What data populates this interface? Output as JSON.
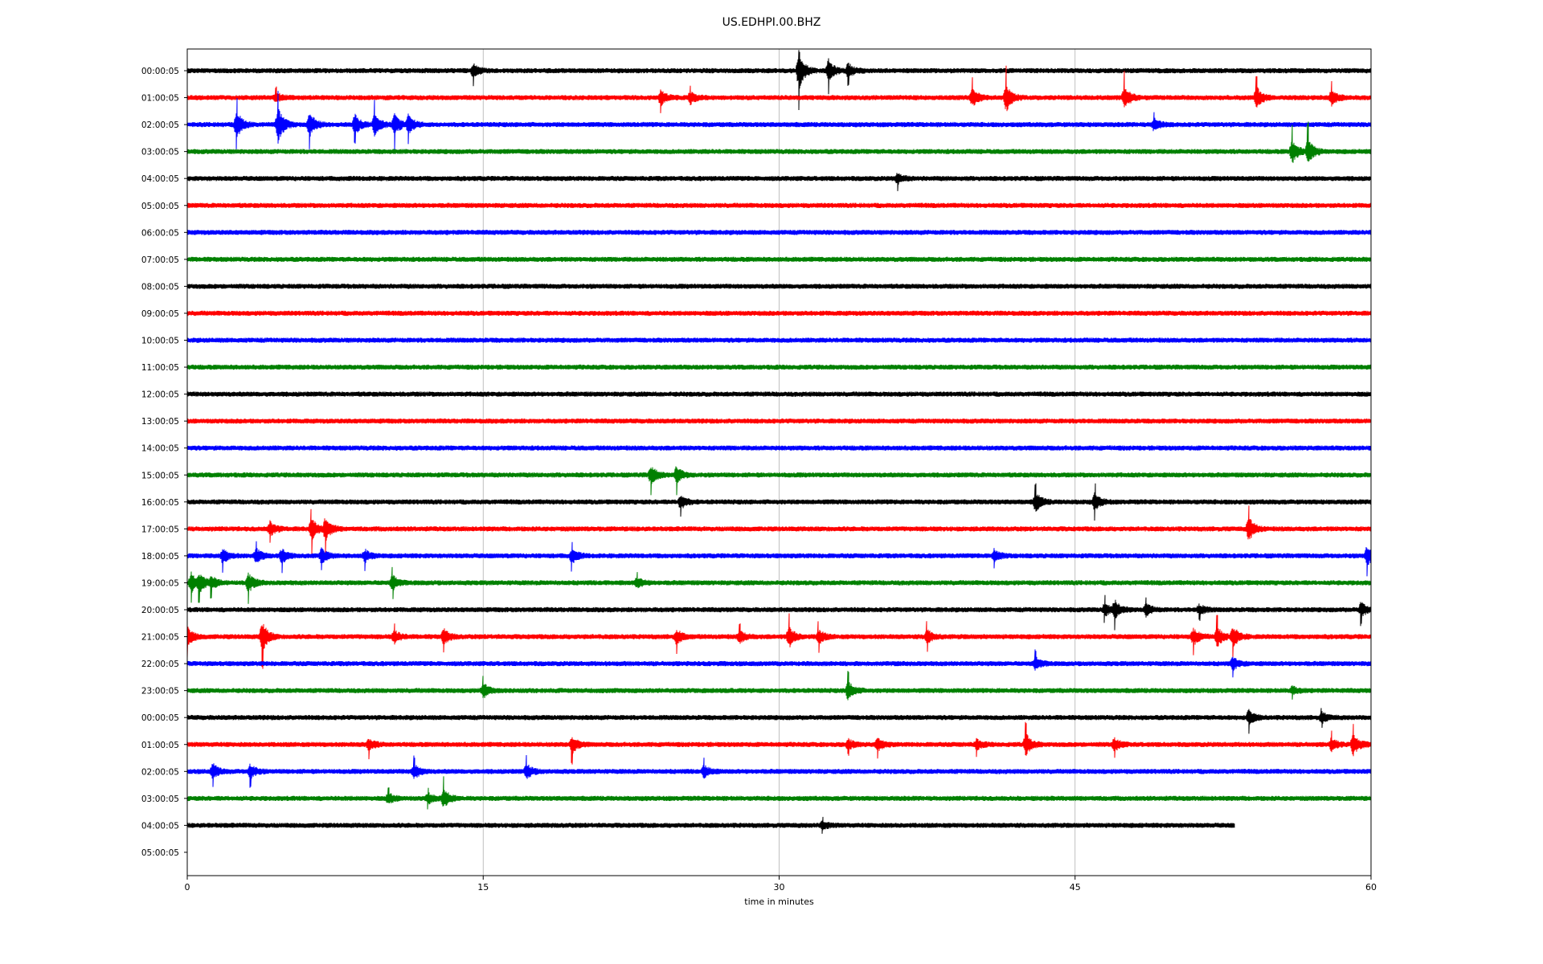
{
  "chart_data": {
    "type": "line",
    "title": "US.EDHPI.00.BHZ",
    "xlabel": "time in minutes",
    "ylabel": "",
    "xlim": [
      0,
      60
    ],
    "xticks": [
      "0",
      "15",
      "30",
      "45",
      "60"
    ],
    "grid": "vertical",
    "colors": [
      "#000000",
      "#ff0000",
      "#0000ff",
      "#008000"
    ],
    "row_labels": [
      "00:00:05",
      "01:00:05",
      "02:00:05",
      "03:00:05",
      "04:00:05",
      "05:00:05",
      "06:00:05",
      "07:00:05",
      "08:00:05",
      "09:00:05",
      "10:00:05",
      "11:00:05",
      "12:00:05",
      "13:00:05",
      "14:00:05",
      "15:00:05",
      "16:00:05",
      "17:00:05",
      "18:00:05",
      "19:00:05",
      "20:00:05",
      "21:00:05",
      "22:00:05",
      "23:00:05",
      "00:00:05",
      "01:00:05",
      "02:00:05",
      "03:00:05",
      "04:00:05",
      "05:00:05"
    ],
    "traces": [
      {
        "label": "00:00:05",
        "end_minute": 60,
        "events": [
          [
            14.5,
            0.6
          ],
          [
            31.0,
            1.7
          ],
          [
            32.5,
            0.9
          ],
          [
            33.5,
            0.6
          ]
        ]
      },
      {
        "label": "01:00:05",
        "end_minute": 60,
        "events": [
          [
            4.5,
            0.4
          ],
          [
            24.0,
            0.6
          ],
          [
            25.5,
            0.5
          ],
          [
            39.8,
            0.8
          ],
          [
            41.5,
            1.2
          ],
          [
            47.5,
            1.0
          ],
          [
            54.2,
            0.9
          ],
          [
            58.0,
            0.6
          ]
        ]
      },
      {
        "label": "02:00:05",
        "end_minute": 60,
        "events": [
          [
            2.5,
            1.2
          ],
          [
            4.6,
            1.5
          ],
          [
            6.2,
            1.0
          ],
          [
            8.5,
            0.8
          ],
          [
            9.5,
            0.9
          ],
          [
            10.5,
            0.9
          ],
          [
            11.2,
            0.8
          ],
          [
            49.0,
            0.5
          ]
        ]
      },
      {
        "label": "03:00:05",
        "end_minute": 60,
        "events": [
          [
            56.0,
            1.0
          ],
          [
            56.8,
            1.2
          ]
        ]
      },
      {
        "label": "04:00:05",
        "end_minute": 60,
        "events": [
          [
            36.0,
            0.4
          ]
        ]
      },
      {
        "label": "05:00:05",
        "end_minute": 60,
        "events": []
      },
      {
        "label": "06:00:05",
        "end_minute": 60,
        "events": []
      },
      {
        "label": "07:00:05",
        "end_minute": 60,
        "events": []
      },
      {
        "label": "08:00:05",
        "end_minute": 60,
        "events": []
      },
      {
        "label": "09:00:05",
        "end_minute": 60,
        "events": []
      },
      {
        "label": "10:00:05",
        "end_minute": 60,
        "events": []
      },
      {
        "label": "11:00:05",
        "end_minute": 60,
        "events": []
      },
      {
        "label": "12:00:05",
        "end_minute": 60,
        "events": []
      },
      {
        "label": "13:00:05",
        "end_minute": 60,
        "events": []
      },
      {
        "label": "14:00:05",
        "end_minute": 60,
        "events": []
      },
      {
        "label": "15:00:05",
        "end_minute": 60,
        "events": [
          [
            23.5,
            0.8
          ],
          [
            24.8,
            0.7
          ]
        ]
      },
      {
        "label": "16:00:05",
        "end_minute": 60,
        "events": [
          [
            25.0,
            0.6
          ],
          [
            43.0,
            0.8
          ],
          [
            46.0,
            0.7
          ]
        ]
      },
      {
        "label": "17:00:05",
        "end_minute": 60,
        "events": [
          [
            4.2,
            0.6
          ],
          [
            6.3,
            0.9
          ],
          [
            7.0,
            1.0
          ],
          [
            53.8,
            1.0
          ]
        ]
      },
      {
        "label": "18:00:05",
        "end_minute": 60,
        "events": [
          [
            1.8,
            0.6
          ],
          [
            3.5,
            0.6
          ],
          [
            4.8,
            0.6
          ],
          [
            6.8,
            0.6
          ],
          [
            9.0,
            0.5
          ],
          [
            19.5,
            0.6
          ],
          [
            40.9,
            0.5
          ],
          [
            59.8,
            0.8
          ]
        ]
      },
      {
        "label": "19:00:05",
        "end_minute": 60,
        "events": [
          [
            0.2,
            0.8
          ],
          [
            0.6,
            0.9
          ],
          [
            1.2,
            0.6
          ],
          [
            3.1,
            0.8
          ],
          [
            10.4,
            0.6
          ],
          [
            22.8,
            0.4
          ]
        ]
      },
      {
        "label": "20:00:05",
        "end_minute": 60,
        "events": [
          [
            46.5,
            0.5
          ],
          [
            47.0,
            0.8
          ],
          [
            48.6,
            0.5
          ],
          [
            51.3,
            0.4
          ],
          [
            59.5,
            0.6
          ]
        ]
      },
      {
        "label": "21:00:05",
        "end_minute": 60,
        "events": [
          [
            0.0,
            0.8
          ],
          [
            3.8,
            1.3
          ],
          [
            10.5,
            0.5
          ],
          [
            13.0,
            0.6
          ],
          [
            24.8,
            0.6
          ],
          [
            28.0,
            0.5
          ],
          [
            30.5,
            0.9
          ],
          [
            32.0,
            0.6
          ],
          [
            37.5,
            0.6
          ],
          [
            51.0,
            0.7
          ],
          [
            52.2,
            0.8
          ],
          [
            53.0,
            0.9
          ]
        ]
      },
      {
        "label": "22:00:05",
        "end_minute": 60,
        "events": [
          [
            43.0,
            0.5
          ],
          [
            53.0,
            0.5
          ]
        ]
      },
      {
        "label": "23:00:05",
        "end_minute": 60,
        "events": [
          [
            15.0,
            0.6
          ],
          [
            33.5,
            0.8
          ],
          [
            56.0,
            0.3
          ]
        ]
      },
      {
        "label": "00:00:05",
        "end_minute": 60,
        "events": [
          [
            53.8,
            0.6
          ],
          [
            57.5,
            0.4
          ]
        ]
      },
      {
        "label": "01:00:05",
        "end_minute": 60,
        "events": [
          [
            9.2,
            0.5
          ],
          [
            19.5,
            0.7
          ],
          [
            33.5,
            0.4
          ],
          [
            35.0,
            0.5
          ],
          [
            40.0,
            0.4
          ],
          [
            42.5,
            0.9
          ],
          [
            47.0,
            0.5
          ],
          [
            58.0,
            0.5
          ],
          [
            59.1,
            0.9
          ]
        ]
      },
      {
        "label": "02:00:05",
        "end_minute": 60,
        "events": [
          [
            1.3,
            0.6
          ],
          [
            3.2,
            0.6
          ],
          [
            11.5,
            0.6
          ],
          [
            17.2,
            0.6
          ],
          [
            26.2,
            0.5
          ]
        ]
      },
      {
        "label": "03:00:05",
        "end_minute": 60,
        "events": [
          [
            10.2,
            0.4
          ],
          [
            12.2,
            0.4
          ],
          [
            13.0,
            0.8
          ]
        ]
      },
      {
        "label": "04:00:05",
        "end_minute": 53.1,
        "events": [
          [
            32.2,
            0.3
          ]
        ]
      },
      {
        "label": "05:00:05",
        "end_minute": 0,
        "events": []
      }
    ]
  }
}
